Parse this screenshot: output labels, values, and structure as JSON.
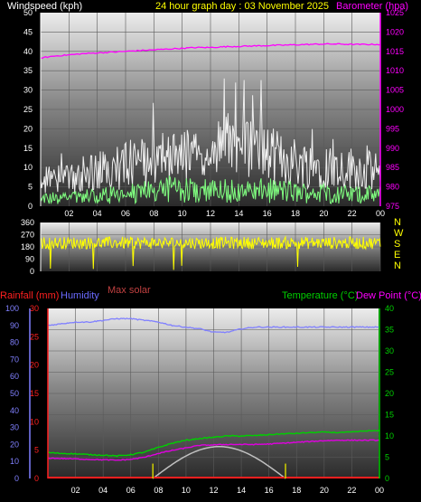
{
  "header": {
    "left": "Windspeed (kph)",
    "center": "24 hour graph day : 03 November 2025",
    "right": "Barometer (hpa)"
  },
  "panel3_header": {
    "rain": "Rainfall (mm)",
    "humidity": "Humidity",
    "solar": "Max solar",
    "temperature": "Temperature (°C)",
    "dewpoint": "Dew Point (°C)"
  },
  "compass": [
    "N",
    "W",
    "S",
    "E",
    "N"
  ],
  "colors": {
    "wind_gust": "#f0f0f0",
    "wind_avg": "#80ff80",
    "barometer": "#ff00ff",
    "wind_dir": "#ffff00",
    "temperature": "#00d000",
    "dewpoint": "#e000e0",
    "humidity": "#8080ff",
    "rain": "#ff2020",
    "solar": "#c0c0c0",
    "sun_tick": "#d0d000"
  },
  "chart_data": [
    {
      "type": "line",
      "x_tick_labels": [
        "02",
        "04",
        "06",
        "08",
        "10",
        "12",
        "14",
        "16",
        "18",
        "20",
        "22",
        "00"
      ],
      "y_left": {
        "label": "Windspeed (kph)",
        "ticks": [
          "0",
          "5",
          "10",
          "15",
          "20",
          "25",
          "30",
          "35",
          "40",
          "45",
          "50"
        ],
        "range": [
          0,
          50
        ]
      },
      "y_right": {
        "label": "Barometer (hpa)",
        "ticks": [
          "975",
          "980",
          "985",
          "990",
          "995",
          "1000",
          "1005",
          "1010",
          "1015",
          "1020",
          "1025"
        ],
        "range": [
          975,
          1025
        ]
      },
      "series": [
        {
          "name": "Windspeed (kph)",
          "kind": "gust",
          "approx_hourly": [
            9,
            8,
            9,
            10,
            11,
            11,
            13,
            14,
            15,
            15,
            16,
            16,
            17,
            19,
            18,
            18,
            16,
            15,
            14,
            13,
            13,
            12,
            12,
            11
          ],
          "approx_max": 33
        },
        {
          "name": "Windspeed (kph)",
          "kind": "average",
          "approx_hourly": [
            2,
            2,
            2,
            2.5,
            2.5,
            3,
            3,
            3.5,
            4,
            4.5,
            4,
            4,
            4,
            4.5,
            4,
            4,
            4,
            4,
            3.5,
            3.5,
            3.5,
            3,
            3,
            3
          ]
        },
        {
          "name": "Barometer (hpa)",
          "approx_hourly": [
            1013.3,
            1013.8,
            1014.1,
            1014.4,
            1014.6,
            1014.8,
            1015.0,
            1015.2,
            1015.4,
            1015.6,
            1015.8,
            1016.0,
            1016.0,
            1016.2,
            1016.3,
            1016.4,
            1016.5,
            1016.6,
            1016.7,
            1016.8,
            1016.9,
            1016.9,
            1016.8,
            1016.8
          ]
        }
      ]
    },
    {
      "type": "line",
      "x_tick_labels": [
        "02",
        "04",
        "06",
        "08",
        "10",
        "12",
        "14",
        "16",
        "18",
        "20",
        "22",
        "00"
      ],
      "y_left": {
        "ticks": [
          "360",
          "270",
          "180",
          "90",
          "0"
        ],
        "range": [
          0,
          360
        ]
      },
      "series": [
        {
          "name": "Wind direction (°)",
          "approx_mean": 210,
          "approx_spread": 45
        }
      ]
    },
    {
      "type": "line",
      "x_tick_labels": [
        "02",
        "04",
        "06",
        "08",
        "10",
        "12",
        "14",
        "16",
        "18",
        "20",
        "22",
        "00"
      ],
      "y_left_humidity": {
        "ticks": [
          "0",
          "10",
          "20",
          "30",
          "40",
          "50",
          "60",
          "70",
          "80",
          "90",
          "100"
        ],
        "range": [
          0,
          100
        ]
      },
      "y_left_rain": {
        "ticks": [
          "0",
          "5",
          "10",
          "15",
          "20",
          "25",
          "30"
        ],
        "range": [
          0,
          30
        ]
      },
      "y_right": {
        "label": "Temperature (°C)",
        "ticks": [
          "0",
          "5",
          "10",
          "15",
          "20",
          "25",
          "30",
          "35",
          "40"
        ],
        "range": [
          0,
          40
        ]
      },
      "series": [
        {
          "name": "Humidity",
          "approx_hourly": [
            90,
            91,
            92,
            92,
            93,
            94,
            94,
            93,
            92,
            90,
            89,
            88,
            86,
            86,
            88,
            89,
            89,
            89,
            89,
            89,
            89,
            89,
            89,
            89
          ]
        },
        {
          "name": "Temperature (°C)",
          "approx_hourly": [
            6.1,
            5.9,
            5.8,
            5.6,
            5.5,
            5.3,
            5.6,
            6.2,
            7.3,
            8.3,
            9.0,
            9.4,
            9.7,
            10.0,
            10.0,
            10.1,
            10.3,
            10.5,
            10.6,
            10.8,
            10.9,
            10.8,
            10.9,
            11.2
          ]
        },
        {
          "name": "Dew Point (°C)",
          "approx_hourly": [
            4.8,
            4.7,
            4.6,
            4.5,
            4.4,
            4.3,
            4.5,
            5.0,
            5.9,
            6.6,
            7.2,
            7.8,
            7.9,
            8.0,
            8.0,
            8.0,
            8.1,
            8.3,
            8.5,
            8.7,
            8.9,
            9.0,
            9.0,
            9.0
          ]
        },
        {
          "name": "Max solar",
          "approx_peak_hour": 12.5,
          "approx_peak_value": 7.5,
          "sunrise_hour": 7.6,
          "sunset_hour": 17.2
        },
        {
          "name": "Rainfall (mm)",
          "approx_value": 0
        }
      ]
    }
  ]
}
